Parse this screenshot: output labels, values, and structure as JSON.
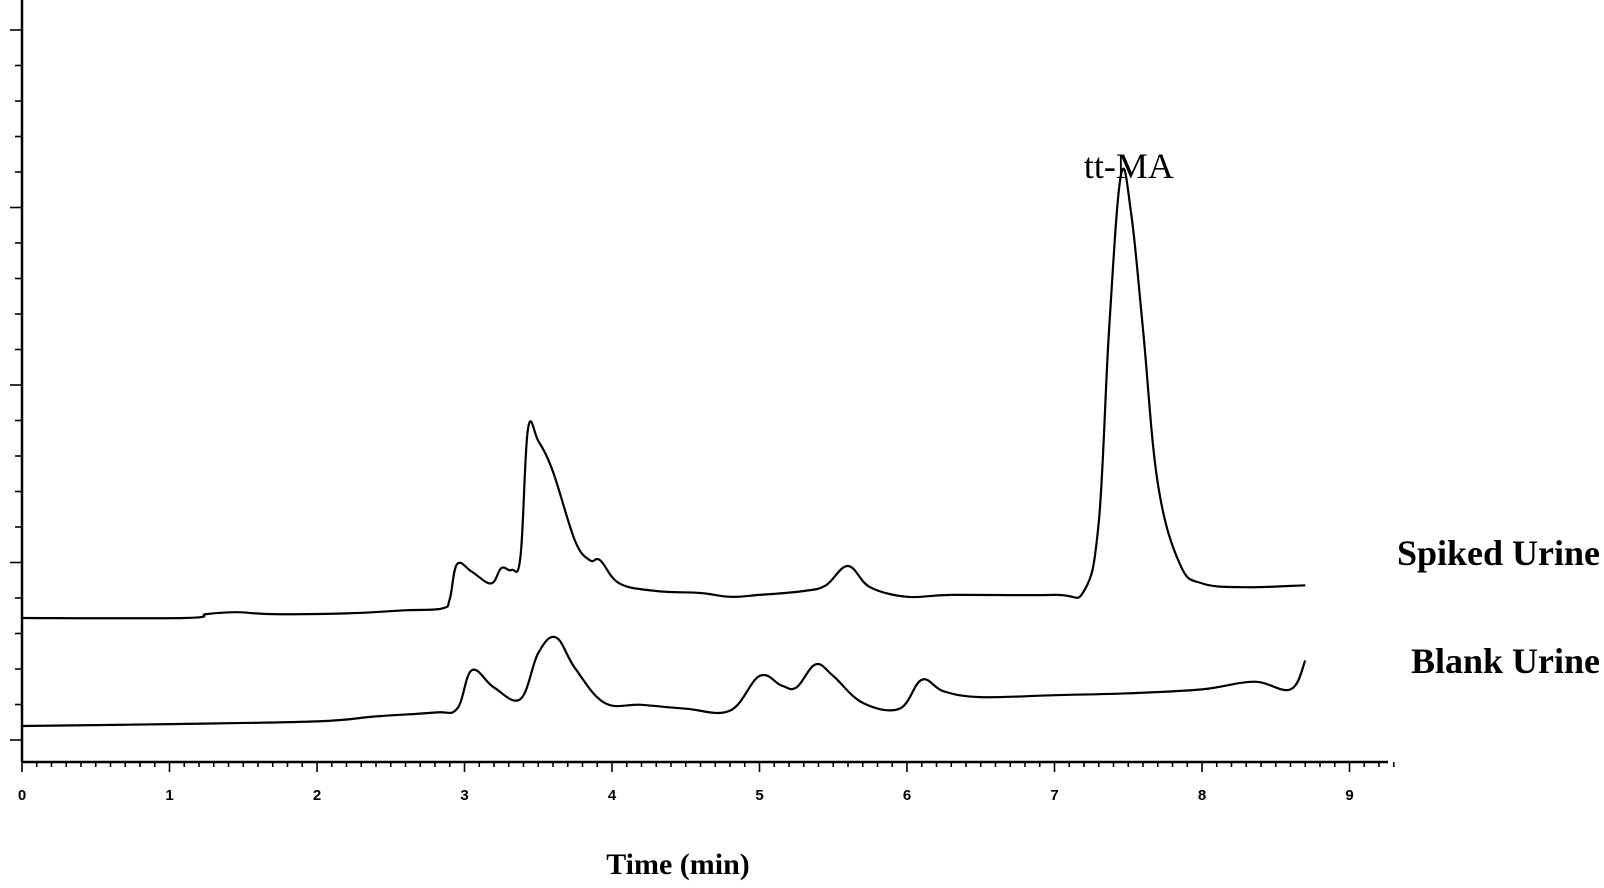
{
  "chart_data": {
    "type": "line",
    "title": "",
    "xlabel": "Time (min)",
    "ylabel": "",
    "xlim": [
      0,
      9.3
    ],
    "xticks": [
      "0",
      "1",
      "2",
      "3",
      "4",
      "5",
      "6",
      "7",
      "8",
      "9"
    ],
    "grid": false,
    "annotations": [
      {
        "text": "tt-MA",
        "x": 7.45
      }
    ],
    "series": [
      {
        "name": "Spiked Urine",
        "points": [
          [
            0.0,
            0.0
          ],
          [
            1.1,
            0.0
          ],
          [
            1.25,
            0.1
          ],
          [
            1.45,
            0.15
          ],
          [
            1.7,
            0.1
          ],
          [
            2.2,
            0.12
          ],
          [
            2.6,
            0.2
          ],
          [
            2.85,
            0.25
          ],
          [
            2.9,
            0.5
          ],
          [
            2.95,
            1.4
          ],
          [
            3.05,
            1.2
          ],
          [
            3.18,
            0.9
          ],
          [
            3.25,
            1.3
          ],
          [
            3.32,
            1.25
          ],
          [
            3.38,
            1.6
          ],
          [
            3.43,
            4.9
          ],
          [
            3.5,
            4.6
          ],
          [
            3.6,
            3.8
          ],
          [
            3.75,
            2.0
          ],
          [
            3.85,
            1.5
          ],
          [
            3.92,
            1.5
          ],
          [
            4.05,
            0.9
          ],
          [
            4.3,
            0.7
          ],
          [
            4.6,
            0.65
          ],
          [
            4.8,
            0.55
          ],
          [
            5.0,
            0.6
          ],
          [
            5.3,
            0.7
          ],
          [
            5.45,
            0.85
          ],
          [
            5.6,
            1.35
          ],
          [
            5.75,
            0.8
          ],
          [
            6.0,
            0.55
          ],
          [
            6.3,
            0.6
          ],
          [
            7.0,
            0.6
          ],
          [
            7.2,
            0.7
          ],
          [
            7.3,
            2.5
          ],
          [
            7.37,
            7.5
          ],
          [
            7.45,
            11.5
          ],
          [
            7.52,
            10.5
          ],
          [
            7.6,
            7.5
          ],
          [
            7.7,
            3.5
          ],
          [
            7.85,
            1.4
          ],
          [
            8.0,
            0.9
          ],
          [
            8.3,
            0.8
          ],
          [
            8.7,
            0.85
          ]
        ]
      },
      {
        "name": "Blank Urine",
        "points": [
          [
            0.0,
            0.0
          ],
          [
            1.0,
            0.05
          ],
          [
            2.0,
            0.12
          ],
          [
            2.4,
            0.25
          ],
          [
            2.8,
            0.35
          ],
          [
            2.95,
            0.45
          ],
          [
            3.05,
            1.45
          ],
          [
            3.2,
            1.0
          ],
          [
            3.38,
            0.7
          ],
          [
            3.5,
            1.9
          ],
          [
            3.62,
            2.3
          ],
          [
            3.75,
            1.5
          ],
          [
            3.95,
            0.6
          ],
          [
            4.2,
            0.55
          ],
          [
            4.5,
            0.45
          ],
          [
            4.8,
            0.4
          ],
          [
            5.0,
            1.3
          ],
          [
            5.15,
            1.05
          ],
          [
            5.25,
            1.0
          ],
          [
            5.38,
            1.6
          ],
          [
            5.5,
            1.3
          ],
          [
            5.7,
            0.6
          ],
          [
            5.95,
            0.45
          ],
          [
            6.1,
            1.2
          ],
          [
            6.25,
            0.9
          ],
          [
            6.5,
            0.75
          ],
          [
            7.0,
            0.8
          ],
          [
            7.5,
            0.85
          ],
          [
            8.0,
            0.95
          ],
          [
            8.35,
            1.15
          ],
          [
            8.6,
            0.95
          ],
          [
            8.7,
            1.7
          ]
        ]
      }
    ]
  }
}
